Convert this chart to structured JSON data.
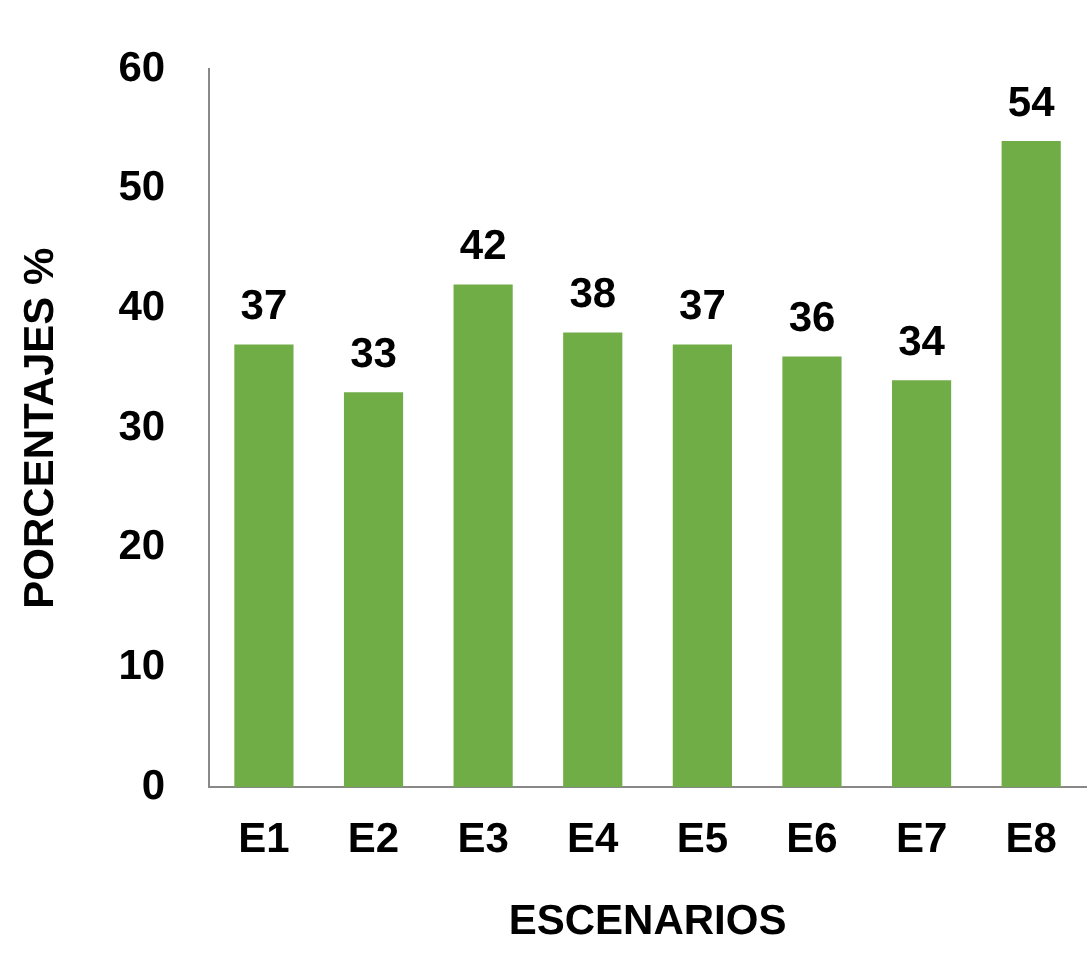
{
  "chart_data": {
    "type": "bar",
    "xlabel": "ESCENARIOS",
    "ylabel": "PORCENTAJES %",
    "categories": [
      "E1",
      "E2",
      "E3",
      "E4",
      "E5",
      "E6",
      "E7",
      "E8"
    ],
    "values": [
      37,
      33,
      42,
      38,
      37,
      36,
      34,
      54
    ],
    "color": "#70ad47",
    "ylim": [
      0,
      60
    ],
    "yticks": [
      0,
      10,
      20,
      30,
      40,
      50,
      60
    ],
    "grid": false,
    "legend": false,
    "data_labels": true
  }
}
